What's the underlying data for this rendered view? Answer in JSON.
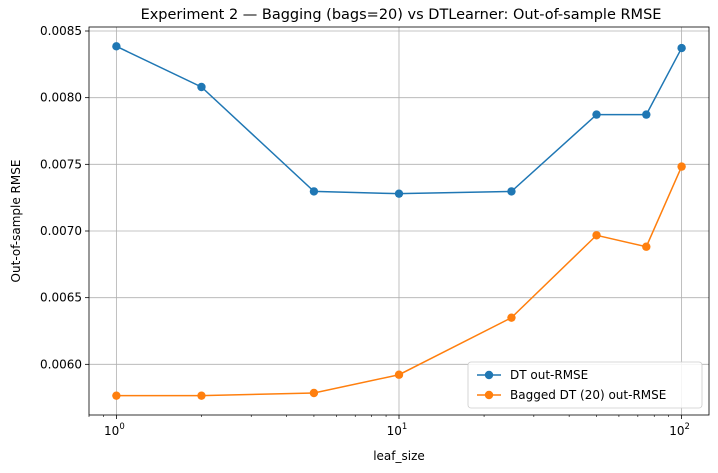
{
  "chart_data": {
    "type": "line",
    "title": "Experiment 2 — Bagging (bags=20) vs DTLearner: Out-of-sample RMSE",
    "xlabel": "leaf_size",
    "ylabel": "Out-of-sample RMSE",
    "xscale": "log",
    "xlim": [
      0.8,
      125
    ],
    "ylim": [
      0.00562,
      0.00853
    ],
    "grid": true,
    "legend_position": "lower-right",
    "x": [
      1,
      2,
      5,
      10,
      25,
      50,
      75,
      100
    ],
    "series": [
      {
        "name": "DT out-RMSE",
        "color": "#1f77b4",
        "values": [
          0.008385,
          0.00808,
          0.007297,
          0.00728,
          0.007297,
          0.007873,
          0.007873,
          0.008372
        ]
      },
      {
        "name": "Bagged DT (20) out-RMSE",
        "color": "#ff7f0e",
        "values": [
          0.005765,
          0.005765,
          0.005785,
          0.005922,
          0.00635,
          0.006968,
          0.006882,
          0.007483
        ]
      }
    ],
    "x_ticks": [
      {
        "value": 1,
        "base": "10",
        "exp": "0"
      },
      {
        "value": 10,
        "base": "10",
        "exp": "1"
      },
      {
        "value": 100,
        "base": "10",
        "exp": "2"
      }
    ],
    "y_ticks": [
      {
        "value": 0.006,
        "label": "0.0060"
      },
      {
        "value": 0.0065,
        "label": "0.0065"
      },
      {
        "value": 0.007,
        "label": "0.0070"
      },
      {
        "value": 0.0075,
        "label": "0.0075"
      },
      {
        "value": 0.008,
        "label": "0.0080"
      },
      {
        "value": 0.0085,
        "label": "0.0085"
      }
    ]
  }
}
